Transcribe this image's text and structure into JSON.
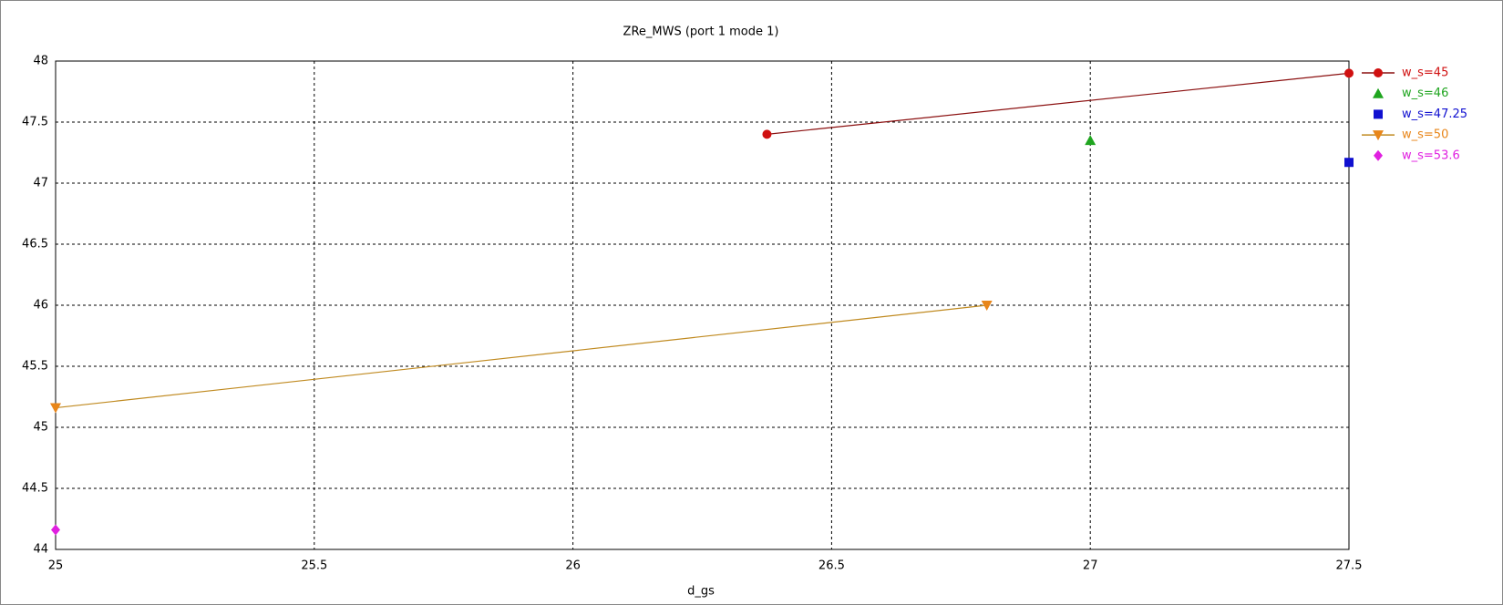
{
  "chart_data": {
    "type": "scatter",
    "title": "ZRe_MWS (port 1 mode 1)",
    "x_label": "d_gs",
    "xlim": [
      25,
      27.5
    ],
    "xticks": [
      25,
      25.5,
      26,
      26.5,
      27,
      27.5
    ],
    "ylim": [
      44,
      48
    ],
    "yticks": [
      44,
      44.5,
      45,
      45.5,
      46,
      46.5,
      47,
      47.5,
      48
    ],
    "grid": true,
    "legend": "right",
    "series": [
      {
        "name": "w_s=45",
        "color": "#d01010",
        "line_color": "#8b1010",
        "marker": "circle",
        "x": [
          26.375,
          27.5
        ],
        "values": [
          47.4,
          47.9
        ]
      },
      {
        "name": "w_s=46",
        "color": "#1fa51f",
        "marker": "triangle",
        "x": [
          27
        ],
        "values": [
          47.35
        ]
      },
      {
        "name": "w_s=47.25",
        "color": "#1010d0",
        "marker": "square",
        "x": [
          27.5
        ],
        "values": [
          47.17
        ]
      },
      {
        "name": "w_s=50",
        "color": "#e8861a",
        "line_color": "#c08a20",
        "marker": "triangle-down",
        "x": [
          25,
          26.8
        ],
        "values": [
          45.16,
          46.0
        ]
      },
      {
        "name": "w_s=53.6",
        "color": "#e020e0",
        "marker": "diamond",
        "x": [
          25
        ],
        "values": [
          44.16
        ]
      }
    ]
  }
}
